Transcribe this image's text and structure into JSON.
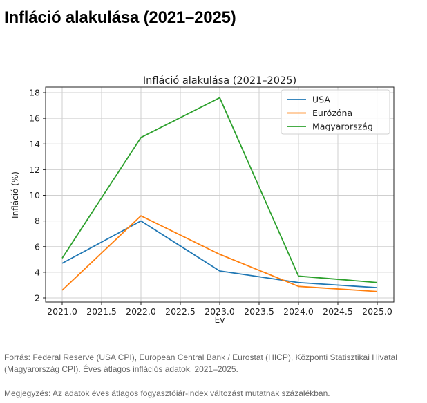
{
  "page": {
    "title": "Infláció alakulása (2021–2025)"
  },
  "chart_data": {
    "type": "line",
    "title": "Infláció alakulása (2021–2025)",
    "xlabel": "Év",
    "ylabel": "Infláció (%)",
    "x": [
      2021,
      2022,
      2023,
      2024,
      2025
    ],
    "xticks": [
      "2021.0",
      "2021.5",
      "2022.0",
      "2022.5",
      "2023.0",
      "2023.5",
      "2024.0",
      "2024.5",
      "2025.0"
    ],
    "yticks": [
      "2",
      "4",
      "6",
      "8",
      "10",
      "12",
      "14",
      "16",
      "18"
    ],
    "xlim": [
      2020.8,
      2025.2
    ],
    "ylim": [
      1.7,
      18.4
    ],
    "grid": true,
    "legend_position": "upper right",
    "series": [
      {
        "name": "USA",
        "color": "#1f77b4",
        "values": [
          4.7,
          8.0,
          4.1,
          3.2,
          2.8
        ]
      },
      {
        "name": "Eurózóna",
        "color": "#ff7f0e",
        "values": [
          2.6,
          8.4,
          5.4,
          2.9,
          2.5
        ]
      },
      {
        "name": "Magyarország",
        "color": "#2ca02c",
        "values": [
          5.1,
          14.5,
          17.6,
          3.7,
          3.2
        ]
      }
    ]
  },
  "footer": {
    "source": "Forrás: Federal Reserve (USA CPI), European Central Bank / Eurostat (HICP), Központi Statisztikai Hivatal (Magyarország CPI). Éves átlagos inflációs adatok, 2021–2025.",
    "note": "Megjegyzés: Az adatok éves átlagos fogyasztóiár-index változást mutatnak százalékban."
  }
}
